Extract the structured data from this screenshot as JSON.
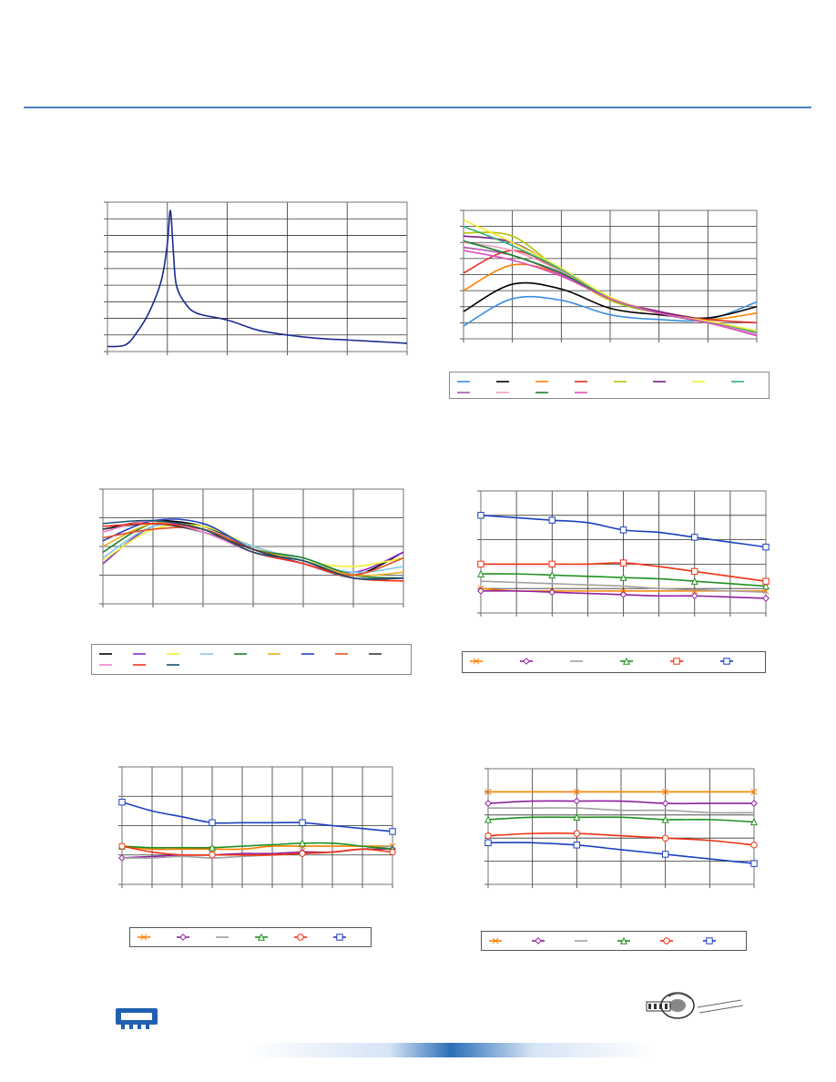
{
  "chart_data": [
    {
      "type": "line",
      "ylim": [
        0,
        9
      ],
      "xlim": [
        0,
        5
      ],
      "series": [
        {
          "color": "#1a2a8c",
          "marker": "none",
          "x": [
            0,
            0.3,
            0.5,
            0.7,
            0.9,
            1.0,
            1.05,
            1.1,
            1.15,
            1.3,
            1.5,
            2,
            2.5,
            3,
            3.5,
            4,
            4.5,
            5
          ],
          "y": [
            0.3,
            0.4,
            1.2,
            2.4,
            4.3,
            6.5,
            8.5,
            6.0,
            4.0,
            2.9,
            2.3,
            1.9,
            1.3,
            1.0,
            0.8,
            0.7,
            0.6,
            0.5
          ]
        }
      ]
    },
    {
      "type": "line",
      "ylim": [
        0,
        8
      ],
      "xlim": [
        0,
        6
      ],
      "series": [
        {
          "color": "#3a8fe0",
          "y": [
            0.8,
            2.5,
            2.4,
            1.5,
            1.2,
            1.2,
            2.3
          ]
        },
        {
          "color": "#000000",
          "y": [
            1.7,
            3.4,
            3.1,
            1.9,
            1.5,
            1.3,
            2.0
          ]
        },
        {
          "color": "#ff8000",
          "y": [
            3.0,
            4.6,
            4.0,
            2.4,
            1.6,
            1.2,
            1.6
          ]
        },
        {
          "color": "#e03020",
          "y": [
            4.1,
            5.5,
            4.2,
            2.5,
            1.7,
            1.2,
            1.0
          ]
        },
        {
          "color": "#b8c200",
          "y": [
            6.6,
            6.4,
            4.2,
            2.4,
            1.6,
            1.0,
            0.5
          ]
        },
        {
          "color": "#7a1a8a",
          "y": [
            6.4,
            6.0,
            4.3,
            2.5,
            1.7,
            1.1,
            0.3
          ]
        },
        {
          "color": "#f2ef30",
          "y": [
            7.4,
            6.0,
            4.4,
            2.6,
            1.6,
            1.1,
            0.5
          ]
        },
        {
          "color": "#30b080",
          "y": [
            7.0,
            5.8,
            4.3,
            2.5,
            1.6,
            1.0,
            0.4
          ]
        },
        {
          "color": "#b050b0",
          "y": [
            5.7,
            5.2,
            4.0,
            2.5,
            1.6,
            1.0,
            0.3
          ]
        },
        {
          "color": "#f0a0c0",
          "y": [
            6.0,
            5.5,
            4.2,
            2.5,
            1.6,
            1.0,
            0.3
          ]
        },
        {
          "color": "#1a8030",
          "y": [
            6.1,
            5.2,
            4.1,
            2.5,
            1.6,
            1.0,
            0.2
          ]
        },
        {
          "color": "#e050c0",
          "y": [
            5.5,
            4.9,
            3.9,
            2.5,
            1.6,
            1.0,
            0.2
          ]
        }
      ]
    },
    {
      "type": "line",
      "ylim": [
        0,
        4
      ],
      "xlim": [
        0,
        6
      ],
      "series": [
        {
          "color": "#000000",
          "y": [
            2.6,
            2.9,
            2.7,
            2.0,
            1.5,
            1.0,
            1.8
          ]
        },
        {
          "color": "#8a2bc8",
          "y": [
            1.4,
            2.7,
            2.6,
            1.9,
            1.5,
            1.1,
            1.8
          ]
        },
        {
          "color": "#f2ef30",
          "y": [
            1.5,
            2.6,
            2.7,
            2.0,
            1.5,
            1.3,
            1.6
          ]
        },
        {
          "color": "#80c8e8",
          "y": [
            1.6,
            2.7,
            2.6,
            2.0,
            1.5,
            1.1,
            1.3
          ]
        },
        {
          "color": "#1a8030",
          "y": [
            1.8,
            2.8,
            2.6,
            1.9,
            1.6,
            1.0,
            0.9
          ]
        },
        {
          "color": "#e8b020",
          "y": [
            2.0,
            2.8,
            2.6,
            1.9,
            1.5,
            1.0,
            1.1
          ]
        },
        {
          "color": "#2040c0",
          "y": [
            2.2,
            2.9,
            2.8,
            1.9,
            1.4,
            0.9,
            0.9
          ]
        },
        {
          "color": "#e85020",
          "y": [
            2.3,
            2.6,
            2.6,
            1.9,
            1.4,
            1.0,
            1.6
          ]
        },
        {
          "color": "#3a3a3a",
          "y": [
            2.6,
            2.8,
            2.5,
            1.9,
            1.4,
            0.9,
            0.9
          ]
        },
        {
          "color": "#f080d0",
          "y": [
            2.5,
            2.9,
            2.5,
            1.8,
            1.4,
            0.9,
            0.8
          ]
        },
        {
          "color": "#ff3020",
          "y": [
            2.7,
            2.8,
            2.6,
            1.8,
            1.4,
            0.9,
            0.8
          ]
        },
        {
          "color": "#1a5070",
          "y": [
            2.8,
            2.9,
            2.6,
            1.8,
            1.5,
            0.9,
            0.9
          ]
        }
      ]
    },
    {
      "type": "line",
      "ylim": [
        0,
        5
      ],
      "xlim": [
        0,
        8
      ],
      "series": [
        {
          "color": "#ff8000",
          "marker": "x",
          "y": [
            1.0,
            0.9,
            0.9,
            0.9,
            0.9,
            0.9,
            0.9,
            0.9,
            0.9
          ]
        },
        {
          "color": "#9020a0",
          "marker": "diamond",
          "y": [
            0.9,
            0.9,
            0.85,
            0.8,
            0.75,
            0.7,
            0.7,
            0.65,
            0.6
          ]
        },
        {
          "color": "#a0a0a0",
          "marker": "none",
          "y": [
            1.3,
            1.25,
            1.2,
            1.15,
            1.1,
            1.0,
            0.95,
            0.9,
            0.85
          ]
        },
        {
          "color": "#209020",
          "marker": "triangle",
          "y": [
            1.6,
            1.6,
            1.55,
            1.5,
            1.45,
            1.4,
            1.3,
            1.2,
            1.1
          ]
        },
        {
          "color": "#f03010",
          "marker": "square",
          "y": [
            2.0,
            2.0,
            2.0,
            2.0,
            2.05,
            1.9,
            1.7,
            1.5,
            1.3
          ]
        },
        {
          "color": "#1a40c0",
          "marker": "square",
          "y": [
            4.0,
            3.9,
            3.8,
            3.7,
            3.4,
            3.3,
            3.1,
            2.9,
            2.7
          ]
        }
      ]
    },
    {
      "type": "line",
      "ylim": [
        0,
        4
      ],
      "xlim": [
        0,
        9
      ],
      "series": [
        {
          "color": "#ff8000",
          "marker": "x",
          "y": [
            1.3,
            1.2,
            1.2,
            1.2,
            1.2,
            1.3,
            1.3,
            1.3,
            1.3,
            1.3
          ]
        },
        {
          "color": "#9020a0",
          "marker": "diamond",
          "y": [
            0.9,
            0.95,
            1.0,
            1.0,
            1.05,
            1.05,
            1.1,
            1.1,
            1.2,
            1.2
          ]
        },
        {
          "color": "#a0a0a0",
          "marker": "none",
          "y": [
            0.9,
            0.9,
            0.95,
            0.9,
            0.95,
            1.0,
            1.05,
            1.1,
            1.2,
            1.3
          ]
        },
        {
          "color": "#209020",
          "marker": "triangle",
          "y": [
            1.3,
            1.25,
            1.25,
            1.25,
            1.3,
            1.35,
            1.4,
            1.4,
            1.3,
            1.2
          ]
        },
        {
          "color": "#f03010",
          "marker": "circle",
          "y": [
            1.3,
            1.1,
            1.0,
            1.0,
            1.0,
            1.0,
            1.05,
            1.1,
            1.2,
            1.1
          ]
        },
        {
          "color": "#1a40c0",
          "marker": "square",
          "y": [
            2.8,
            2.5,
            2.3,
            2.1,
            2.1,
            2.1,
            2.1,
            2.0,
            1.9,
            1.8
          ]
        }
      ]
    },
    {
      "type": "line",
      "ylim": [
        0,
        5
      ],
      "xlim": [
        0,
        6
      ],
      "series": [
        {
          "color": "#ff8000",
          "marker": "x",
          "y": [
            4.0,
            4.0,
            4.0,
            4.0,
            4.0,
            4.0,
            4.0
          ]
        },
        {
          "color": "#9020a0",
          "marker": "diamond",
          "y": [
            3.5,
            3.6,
            3.6,
            3.6,
            3.5,
            3.5,
            3.5
          ]
        },
        {
          "color": "#a0a0a0",
          "marker": "none",
          "y": [
            3.3,
            3.3,
            3.3,
            3.2,
            3.2,
            3.1,
            3.1
          ]
        },
        {
          "color": "#209020",
          "marker": "triangle",
          "y": [
            2.8,
            2.9,
            2.9,
            2.9,
            2.8,
            2.8,
            2.7
          ]
        },
        {
          "color": "#f03010",
          "marker": "circle",
          "y": [
            2.1,
            2.2,
            2.2,
            2.1,
            2.0,
            1.9,
            1.7
          ]
        },
        {
          "color": "#1a40c0",
          "marker": "square",
          "y": [
            1.8,
            1.8,
            1.7,
            1.5,
            1.3,
            1.1,
            0.9
          ]
        }
      ]
    }
  ]
}
